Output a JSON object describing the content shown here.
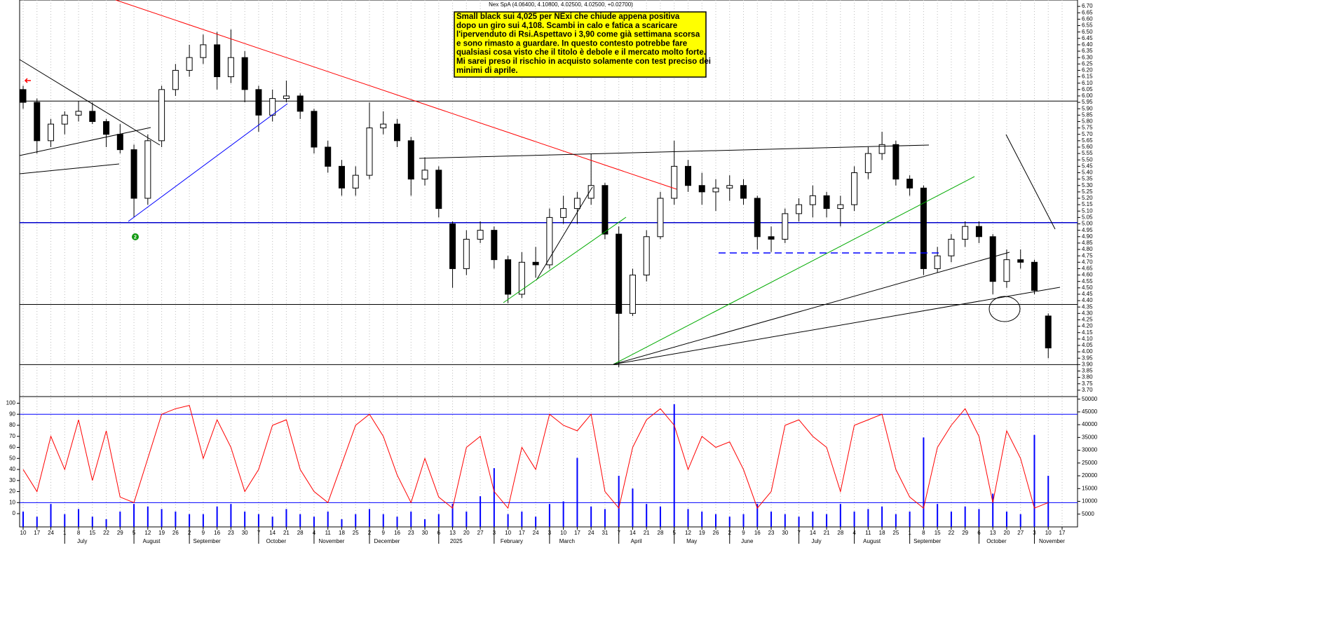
{
  "chart_data": {
    "type": "candlestick",
    "title": "Nex SpA (4.06400, 4.10800, 4.02500, 4.02500, +0.02700)",
    "categories": [
      "10",
      "17",
      "24",
      "1",
      "8",
      "15",
      "22",
      "29",
      "5",
      "12",
      "19",
      "26",
      "2",
      "9",
      "16",
      "23",
      "30",
      "7",
      "14",
      "21",
      "28",
      "4",
      "11",
      "18",
      "25",
      "2",
      "9",
      "16",
      "23",
      "30",
      "6",
      "13",
      "20",
      "27",
      "3",
      "10",
      "17",
      "24",
      "3",
      "10",
      "17",
      "24",
      "31",
      "7",
      "14",
      "21",
      "28",
      "5",
      "12",
      "19",
      "26",
      "2",
      "9",
      "16",
      "23",
      "30",
      "7",
      "14",
      "21",
      "28",
      "4",
      "11",
      "18",
      "25",
      "1",
      "8",
      "15",
      "22",
      "29",
      "6",
      "13",
      "20",
      "27",
      "3",
      "10",
      "17"
    ],
    "month_labels": [
      null,
      null,
      null,
      "July",
      null,
      null,
      null,
      null,
      "August",
      null,
      null,
      null,
      "September",
      null,
      null,
      null,
      null,
      "October",
      null,
      null,
      null,
      "November",
      null,
      null,
      null,
      "December",
      null,
      null,
      null,
      null,
      "2025",
      null,
      null,
      null,
      "February",
      null,
      null,
      null,
      "March",
      null,
      null,
      null,
      null,
      "April",
      null,
      null,
      null,
      "May",
      null,
      null,
      null,
      "June",
      null,
      null,
      null,
      null,
      "July",
      null,
      null,
      null,
      "August",
      null,
      null,
      null,
      "September",
      null,
      null,
      null,
      null,
      "October",
      null,
      null,
      null,
      "November",
      null,
      null
    ],
    "open": [
      6.05,
      5.95,
      5.65,
      5.78,
      5.85,
      5.88,
      5.8,
      5.7,
      5.58,
      5.2,
      5.65,
      6.05,
      6.2,
      6.3,
      6.4,
      6.15,
      6.3,
      6.05,
      5.85,
      5.98,
      6.0,
      5.88,
      5.6,
      5.45,
      5.28,
      5.38,
      5.75,
      5.78,
      5.65,
      5.35,
      5.42,
      5.0,
      4.65,
      4.88,
      4.95,
      4.72,
      4.45,
      4.7,
      4.68,
      5.05,
      5.12,
      5.2,
      5.3,
      4.92,
      4.3,
      4.6,
      4.9,
      5.2,
      5.45,
      5.3,
      5.25,
      5.28,
      5.3,
      5.2,
      4.9,
      4.88,
      5.08,
      5.15,
      5.22,
      5.12,
      5.15,
      5.4,
      5.55,
      5.62,
      5.35,
      5.28,
      4.65,
      4.75,
      4.88,
      4.98,
      4.9,
      4.55,
      4.72,
      4.7,
      4.28,
      null
    ],
    "high": [
      6.08,
      5.98,
      5.82,
      5.88,
      5.96,
      5.95,
      5.82,
      5.78,
      5.62,
      5.7,
      6.08,
      6.25,
      6.4,
      6.48,
      6.5,
      6.52,
      6.35,
      6.08,
      6.05,
      6.12,
      6.02,
      5.9,
      5.65,
      5.5,
      5.45,
      5.95,
      5.88,
      5.82,
      5.68,
      5.52,
      5.45,
      5.02,
      4.95,
      5.02,
      4.98,
      4.75,
      4.78,
      4.82,
      5.12,
      5.22,
      5.25,
      5.55,
      5.32,
      4.98,
      4.65,
      4.95,
      5.25,
      5.65,
      5.5,
      5.4,
      5.35,
      5.38,
      5.35,
      5.22,
      4.98,
      5.12,
      5.2,
      5.3,
      5.25,
      5.22,
      5.45,
      5.6,
      5.72,
      5.65,
      5.38,
      5.3,
      4.82,
      4.92,
      5.02,
      5.02,
      4.92,
      4.8,
      4.8,
      4.72,
      4.3,
      null
    ],
    "low": [
      5.9,
      5.55,
      5.6,
      5.7,
      5.8,
      5.78,
      5.6,
      5.55,
      5.05,
      5.15,
      5.6,
      6.0,
      6.15,
      6.25,
      6.05,
      6.1,
      5.95,
      5.72,
      5.8,
      5.95,
      5.82,
      5.55,
      5.4,
      5.22,
      5.22,
      5.35,
      5.7,
      5.6,
      5.22,
      5.3,
      5.05,
      4.5,
      4.6,
      4.85,
      4.65,
      4.38,
      4.42,
      4.58,
      4.65,
      5.0,
      5.0,
      5.15,
      4.88,
      3.88,
      4.28,
      4.55,
      4.88,
      5.15,
      5.25,
      5.15,
      5.1,
      5.18,
      5.15,
      4.8,
      4.78,
      4.85,
      5.02,
      5.05,
      5.05,
      4.98,
      5.1,
      5.35,
      5.5,
      5.3,
      5.22,
      4.6,
      4.62,
      4.7,
      4.82,
      4.85,
      4.45,
      4.5,
      4.65,
      4.45,
      3.95,
      null
    ],
    "close": [
      5.95,
      5.65,
      5.78,
      5.85,
      5.88,
      5.8,
      5.7,
      5.58,
      5.2,
      5.65,
      6.05,
      6.2,
      6.3,
      6.4,
      6.15,
      6.3,
      6.05,
      5.85,
      5.98,
      6.0,
      5.88,
      5.6,
      5.45,
      5.28,
      5.38,
      5.75,
      5.78,
      5.65,
      5.35,
      5.42,
      5.12,
      4.65,
      4.88,
      4.95,
      4.72,
      4.45,
      4.7,
      4.68,
      5.05,
      5.12,
      5.2,
      5.3,
      4.92,
      4.3,
      4.6,
      4.9,
      5.2,
      5.45,
      5.3,
      5.25,
      5.28,
      5.3,
      5.2,
      4.9,
      4.88,
      5.08,
      5.15,
      5.22,
      5.12,
      5.15,
      5.4,
      5.55,
      5.62,
      5.35,
      5.28,
      4.65,
      4.75,
      4.88,
      4.98,
      4.9,
      4.55,
      4.72,
      4.7,
      4.48,
      4.03,
      null
    ],
    "ylim": [
      3.65,
      6.75
    ],
    "yticks": [
      {
        "value": 3.7,
        "label": "3.70"
      },
      {
        "value": 3.75,
        "label": "3.75"
      },
      {
        "value": 3.8,
        "label": "3.80"
      },
      {
        "value": 3.85,
        "label": "3.85"
      },
      {
        "value": 3.9,
        "label": "3.90"
      },
      {
        "value": 3.95,
        "label": "3.95"
      },
      {
        "value": 4.0,
        "label": "4.00"
      },
      {
        "value": 4.05,
        "label": "4.05"
      },
      {
        "value": 4.1,
        "label": "4.10"
      },
      {
        "value": 4.15,
        "label": "4.15"
      },
      {
        "value": 4.2,
        "label": "4.20"
      },
      {
        "value": 4.25,
        "label": "4.25"
      },
      {
        "value": 4.3,
        "label": "4.30"
      },
      {
        "value": 4.35,
        "label": "4.35"
      },
      {
        "value": 4.4,
        "label": "4.40"
      },
      {
        "value": 4.45,
        "label": "4.45"
      },
      {
        "value": 4.5,
        "label": "4.50"
      },
      {
        "value": 4.55,
        "label": "4.55"
      },
      {
        "value": 4.6,
        "label": "4.60"
      },
      {
        "value": 4.65,
        "label": "4.65"
      },
      {
        "value": 4.7,
        "label": "4.70"
      },
      {
        "value": 4.75,
        "label": "4.75"
      },
      {
        "value": 4.8,
        "label": "4.80"
      },
      {
        "value": 4.85,
        "label": "4.85"
      },
      {
        "value": 4.9,
        "label": "4.90"
      },
      {
        "value": 4.95,
        "label": "4.95"
      },
      {
        "value": 5.0,
        "label": "5.00"
      },
      {
        "value": 5.05,
        "label": "5.05"
      },
      {
        "value": 5.1,
        "label": "5.10"
      },
      {
        "value": 5.15,
        "label": "5.15"
      },
      {
        "value": 5.2,
        "label": "5.20"
      },
      {
        "value": 5.25,
        "label": "5.25"
      },
      {
        "value": 5.3,
        "label": "5.30"
      },
      {
        "value": 5.35,
        "label": "5.35"
      },
      {
        "value": 5.4,
        "label": "5.40"
      },
      {
        "value": 5.45,
        "label": "5.45"
      },
      {
        "value": 5.5,
        "label": "5.50"
      },
      {
        "value": 5.55,
        "label": "5.55"
      },
      {
        "value": 5.6,
        "label": "5.60"
      },
      {
        "value": 5.65,
        "label": "5.65"
      },
      {
        "value": 5.7,
        "label": "5.70"
      },
      {
        "value": 5.75,
        "label": "5.75"
      },
      {
        "value": 5.8,
        "label": "5.80"
      },
      {
        "value": 5.85,
        "label": "5.85"
      },
      {
        "value": 5.9,
        "label": "5.90"
      },
      {
        "value": 5.95,
        "label": "5.95"
      },
      {
        "value": 6.0,
        "label": "6.00"
      },
      {
        "value": 6.05,
        "label": "6.05"
      },
      {
        "value": 6.1,
        "label": "6.10"
      },
      {
        "value": 6.15,
        "label": "6.15"
      },
      {
        "value": 6.2,
        "label": "6.20"
      },
      {
        "value": 6.25,
        "label": "6.25"
      },
      {
        "value": 6.3,
        "label": "6.30"
      },
      {
        "value": 6.35,
        "label": "6.35"
      },
      {
        "value": 6.4,
        "label": "6.40"
      },
      {
        "value": 6.45,
        "label": "6.45"
      },
      {
        "value": 6.5,
        "label": "6.50"
      },
      {
        "value": 6.55,
        "label": "6.55"
      },
      {
        "value": 6.6,
        "label": "6.60"
      },
      {
        "value": 6.65,
        "label": "6.65"
      },
      {
        "value": 6.7,
        "label": "6.70"
      }
    ],
    "levels": [
      {
        "value": 5.96,
        "color": "#000000"
      },
      {
        "value": 5.01,
        "color": "#0000cc"
      },
      {
        "value": 4.37,
        "color": "#000000"
      },
      {
        "value": 3.9,
        "color": "#000000"
      }
    ],
    "annotation": [
      "Small black sui 4,025 per NExi che chiude appena positiva",
      "dopo un giro sui 4,108. Scambi in calo e fatica a scaricare",
      "l'ipervenduto di Rsi.Aspettavo i 3,90 come già settimana scorsa",
      "e sono rimasto a guardare. In questo contesto potrebbe fare",
      "qualsiasi cosa visto che il titolo è debole e il mercato molto forte.",
      "Mi sarei preso il rischio in acquisto solamente con test preciso dei",
      "minimi di aprile."
    ],
    "marker_label": "2",
    "rsi": {
      "color": "#ff0000",
      "ylim": [
        -12,
        106
      ],
      "yticks": [
        0,
        10,
        20,
        30,
        40,
        50,
        60,
        70,
        80,
        90,
        100
      ],
      "levels": [
        90,
        10
      ],
      "level_color": "#0000ff",
      "values": [
        40,
        20,
        70,
        40,
        85,
        30,
        75,
        15,
        10,
        50,
        90,
        95,
        98,
        50,
        85,
        60,
        20,
        40,
        80,
        85,
        40,
        20,
        10,
        45,
        80,
        90,
        70,
        35,
        10,
        50,
        15,
        5,
        60,
        70,
        20,
        5,
        60,
        40,
        90,
        80,
        75,
        90,
        20,
        5,
        60,
        85,
        95,
        80,
        40,
        70,
        60,
        65,
        40,
        5,
        20,
        80,
        85,
        70,
        60,
        20,
        80,
        85,
        90,
        40,
        15,
        5,
        60,
        80,
        95,
        70,
        10,
        75,
        50,
        5,
        10,
        null
      ]
    },
    "volume": {
      "color": "#0000ff",
      "y2lim": [
        0,
        51000
      ],
      "y2ticks": [
        5000,
        10000,
        15000,
        20000,
        25000,
        30000,
        35000,
        40000,
        45000,
        50000
      ],
      "values": [
        6000,
        4000,
        9000,
        5000,
        7000,
        4000,
        3000,
        6000,
        9000,
        8000,
        7000,
        6000,
        5000,
        5000,
        8000,
        9000,
        6000,
        5000,
        4000,
        7000,
        5000,
        4000,
        6000,
        3000,
        5000,
        7000,
        5000,
        4000,
        6000,
        3000,
        5000,
        9000,
        6000,
        12000,
        23000,
        5000,
        6000,
        4000,
        9000,
        10000,
        27000,
        8000,
        7000,
        20000,
        15000,
        9000,
        8000,
        48000,
        7000,
        6000,
        5000,
        4000,
        5000,
        9000,
        6000,
        5000,
        4000,
        6000,
        5000,
        9000,
        6000,
        7000,
        8000,
        5000,
        6000,
        35000,
        9000,
        6000,
        8000,
        7000,
        13000,
        6000,
        5000,
        36000,
        20000,
        null
      ]
    }
  }
}
